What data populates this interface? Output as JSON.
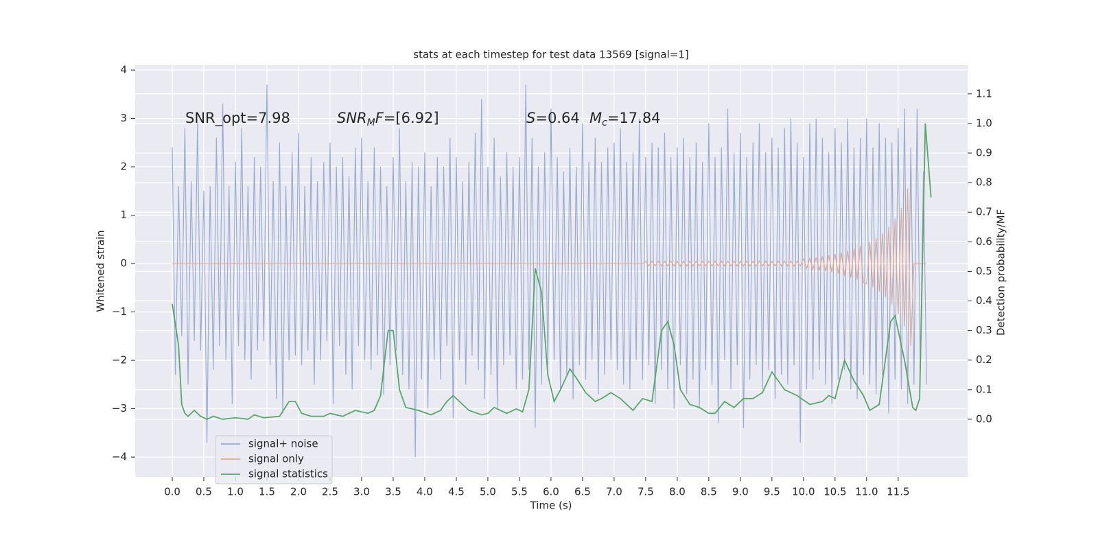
{
  "chart_data": {
    "type": "line",
    "title": "stats at each timestep for test data 13569 [signal=1]",
    "xlabel": "Time (s)",
    "ylabel": "Whitened strain",
    "y2label": "Detection probability/MF",
    "annotations": [
      {
        "parts": [
          {
            "text": "SNR_opt=7.98"
          }
        ]
      },
      {
        "parts": [
          {
            "text": "SNR",
            "italic": true
          },
          {
            "text": "M",
            "italic": true,
            "sub": true
          },
          {
            "text": "F",
            "italic": true
          },
          {
            "text": "=[6.92]"
          }
        ]
      },
      {
        "parts": [
          {
            "text": "S",
            "italic": true
          },
          {
            "text": "=0.64"
          }
        ]
      },
      {
        "parts": [
          {
            "text": "M",
            "italic": true
          },
          {
            "text": "c",
            "italic": true,
            "sub": true
          },
          {
            "text": "=17.84"
          }
        ]
      }
    ],
    "xlim": [
      -0.587,
      12.6
    ],
    "ylim": [
      -4.41,
      4.1
    ],
    "y2lim": [
      -0.195,
      1.197
    ],
    "xticks": [
      {
        "value": 0,
        "label": "0.0"
      },
      0.5,
      {
        "value": 1,
        "label": "1.0"
      },
      1.5,
      {
        "value": 2,
        "label": "2.0"
      },
      2.5,
      {
        "value": 3,
        "label": "3.0"
      },
      3.5,
      {
        "value": 4,
        "label": "4.0"
      },
      4.5,
      {
        "value": 5,
        "label": "5.0"
      },
      5.5,
      {
        "value": 6,
        "label": "6.0"
      },
      6.5,
      {
        "value": 7,
        "label": "7.0"
      },
      7.5,
      {
        "value": 8,
        "label": "8.0"
      },
      8.5,
      {
        "value": 9,
        "label": "9.0"
      },
      9.5,
      {
        "value": 10,
        "label": "10.0"
      },
      10.5,
      {
        "value": 11,
        "label": "11.0"
      },
      11.5
    ],
    "yticks": [
      {
        "value": -4,
        "label": "−4"
      },
      {
        "value": -3,
        "label": "−3"
      },
      {
        "value": -2,
        "label": "−2"
      },
      {
        "value": -1,
        "label": "−1"
      },
      0,
      1,
      2,
      3,
      4
    ],
    "y2ticks": [
      {
        "value": 0,
        "label": "0.0"
      },
      0.1,
      0.2,
      0.3,
      0.4,
      0.5,
      0.6,
      0.7,
      0.8,
      0.9,
      {
        "value": 1,
        "label": "1.0"
      },
      1.1
    ],
    "grid": true,
    "legend": "lower left",
    "x": [
      0,
      0.05,
      0.1,
      0.15,
      0.2,
      0.25,
      0.3,
      0.35,
      0.4,
      0.45,
      0.5,
      0.55,
      0.6,
      0.65,
      0.7,
      0.75,
      0.8,
      0.85,
      0.9,
      0.95,
      1,
      1.05,
      1.1,
      1.15,
      1.2,
      1.25,
      1.3,
      1.35,
      1.4,
      1.45,
      1.5,
      1.55,
      1.6,
      1.65,
      1.7,
      1.75,
      1.8,
      1.85,
      1.9,
      1.95,
      2,
      2.05,
      2.1,
      2.15,
      2.2,
      2.25,
      2.3,
      2.35,
      2.4,
      2.45,
      2.5,
      2.55,
      2.6,
      2.65,
      2.7,
      2.75,
      2.8,
      2.85,
      2.9,
      2.95,
      3,
      3.05,
      3.1,
      3.15,
      3.2,
      3.25,
      3.3,
      3.35,
      3.4,
      3.45,
      3.5,
      3.55,
      3.6,
      3.65,
      3.7,
      3.75,
      3.8,
      3.85,
      3.9,
      3.95,
      4,
      4.05,
      4.1,
      4.15,
      4.2,
      4.25,
      4.3,
      4.35,
      4.4,
      4.45,
      4.5,
      4.55,
      4.6,
      4.65,
      4.7,
      4.75,
      4.8,
      4.85,
      4.9,
      4.95,
      5,
      5.05,
      5.1,
      5.15,
      5.2,
      5.25,
      5.3,
      5.35,
      5.4,
      5.45,
      5.5,
      5.55,
      5.6,
      5.65,
      5.7,
      5.75,
      5.8,
      5.85,
      5.9,
      5.95,
      6,
      6.05,
      6.1,
      6.15,
      6.2,
      6.25,
      6.3,
      6.35,
      6.4,
      6.45,
      6.5,
      6.55,
      6.6,
      6.65,
      6.7,
      6.75,
      6.8,
      6.85,
      6.9,
      6.95,
      7,
      7.05,
      7.1,
      7.15,
      7.2,
      7.25,
      7.3,
      7.35,
      7.4,
      7.45,
      7.5,
      7.55,
      7.6,
      7.65,
      7.7,
      7.75,
      7.8,
      7.85,
      7.9,
      7.95,
      8,
      8.05,
      8.1,
      8.15,
      8.2,
      8.25,
      8.3,
      8.35,
      8.4,
      8.45,
      8.5,
      8.55,
      8.6,
      8.65,
      8.7,
      8.75,
      8.8,
      8.85,
      8.9,
      8.95,
      9,
      9.05,
      9.1,
      9.15,
      9.2,
      9.25,
      9.3,
      9.35,
      9.4,
      9.45,
      9.5,
      9.55,
      9.6,
      9.65,
      9.7,
      9.75,
      9.8,
      9.85,
      9.9,
      9.95,
      10,
      10.05,
      10.1,
      10.15,
      10.2,
      10.25,
      10.3,
      10.35,
      10.4,
      10.45,
      10.5,
      10.55,
      10.6,
      10.65,
      10.7,
      10.75,
      10.8,
      10.85,
      10.9,
      10.95,
      11,
      11.05,
      11.1,
      11.15,
      11.2,
      11.25,
      11.3,
      11.35,
      11.4,
      11.45,
      11.5,
      11.55,
      11.6,
      11.65,
      11.7,
      11.75,
      11.8,
      11.85,
      11.9,
      11.95
    ],
    "series": [
      {
        "name": "signal+ noise",
        "color": "#9aacd2",
        "values": [
          2.4,
          -2.3,
          1.6,
          -1.5,
          2.8,
          -2.5,
          1.7,
          -1.6,
          2.9,
          -1.8,
          1.5,
          -3.7,
          1.6,
          -2.2,
          2.6,
          -1.7,
          3.3,
          -2.0,
          1.6,
          -2.9,
          2.1,
          -1.7,
          2.8,
          -2.0,
          1.6,
          -2.4,
          2.2,
          -1.8,
          2.0,
          -1.6,
          3.7,
          -2.1,
          1.7,
          -2.8,
          2.5,
          -3.1,
          1.6,
          -2.0,
          2.3,
          -1.9,
          2.7,
          -2.1,
          1.6,
          -1.8,
          2.2,
          -2.5,
          1.7,
          -2.0,
          2.1,
          -1.6,
          2.5,
          -2.9,
          2.0,
          -1.7,
          2.2,
          -2.3,
          1.8,
          -2.6,
          2.4,
          -1.7,
          2.6,
          -2.0,
          1.7,
          -2.2,
          2.4,
          -1.9,
          2.0,
          -2.7,
          1.6,
          -2.1,
          2.2,
          -1.8,
          2.8,
          -2.3,
          1.7,
          -2.6,
          2.1,
          -4.0,
          2.0,
          -2.4,
          2.3,
          -3.0,
          1.6,
          -2.0,
          2.2,
          -2.4,
          2.0,
          -1.7,
          2.6,
          -3.2,
          2.2,
          -2.0,
          1.7,
          -2.5,
          2.1,
          -1.9,
          2.7,
          -2.2,
          3.4,
          -2.8,
          2.0,
          -2.3,
          2.6,
          -3.0,
          1.8,
          -2.1,
          2.3,
          -1.9,
          2.0,
          -2.6,
          2.2,
          -2.4,
          3.7,
          -2.2,
          2.6,
          -3.4,
          2.0,
          -2.5,
          2.3,
          -2.1,
          3.2,
          -2.0,
          2.2,
          -2.6,
          1.9,
          -2.3,
          2.4,
          -2.8,
          2.0,
          -2.1,
          2.9,
          -2.4,
          2.1,
          -2.0,
          2.6,
          -2.7,
          2.1,
          -2.3,
          2.4,
          -2.0,
          2.5,
          -2.2,
          2.8,
          -2.5,
          2.1,
          -2.6,
          2.3,
          -2.0,
          3.0,
          -2.4,
          2.2,
          -2.1,
          2.5,
          -2.9,
          2.4,
          -2.2,
          2.7,
          -2.6,
          2.2,
          -3.0,
          2.4,
          -2.1,
          2.6,
          -2.7,
          2.2,
          -2.4,
          2.5,
          -3.0,
          2.1,
          -2.2,
          2.9,
          -2.5,
          2.2,
          -3.3,
          2.4,
          -2.0,
          3.2,
          -2.6,
          2.3,
          -2.1,
          2.7,
          -3.4,
          2.2,
          -2.4,
          2.5,
          -2.1,
          2.9,
          -2.6,
          2.3,
          -2.2,
          2.6,
          -2.8,
          2.4,
          -2.3,
          2.8,
          -2.5,
          3.0,
          -2.1,
          2.5,
          -3.7,
          2.2,
          -2.6,
          2.9,
          -2.4,
          3.0,
          -2.2,
          2.6,
          -2.5,
          2.3,
          -2.9,
          2.8,
          -2.4,
          2.5,
          -2.2,
          3.0,
          -2.6,
          2.4,
          -2.8,
          2.6,
          -2.3,
          3.0,
          -2.5,
          2.4,
          -2.7,
          2.9,
          -2.3,
          2.6,
          -3.1,
          2.5,
          -2.4,
          2.8,
          -2.6,
          3.2,
          -2.9,
          2.4,
          -2.5,
          3.2,
          -2.3,
          1.9,
          -2.5
        ]
      },
      {
        "name": "signal only",
        "color": "#e8a98a",
        "values": [
          0,
          0,
          0,
          0,
          0,
          0,
          0,
          0,
          0,
          0,
          0,
          0,
          0,
          0,
          0,
          0,
          0,
          0,
          0,
          0,
          0,
          0,
          0,
          0,
          0,
          0,
          0,
          0,
          0,
          0,
          0,
          0,
          0,
          0,
          0,
          0,
          0,
          0,
          0,
          0,
          0,
          0,
          0,
          0,
          0,
          0,
          0,
          0,
          0,
          0,
          0,
          0,
          0,
          0,
          0,
          0,
          0,
          0,
          0,
          0,
          0,
          0,
          0,
          0,
          0,
          0,
          0,
          0,
          0,
          0,
          0,
          0,
          0,
          0,
          0,
          0,
          0,
          0,
          0,
          0,
          0,
          0,
          0,
          0,
          0,
          0,
          0,
          0,
          0,
          0,
          0,
          0,
          0,
          0,
          0,
          0,
          0,
          0,
          0,
          0,
          0,
          0,
          0,
          0,
          0,
          0,
          0,
          0,
          0,
          0,
          0,
          0,
          0,
          0,
          0,
          0,
          0,
          0,
          0,
          0,
          0,
          0,
          0,
          0,
          0,
          0,
          0,
          0,
          0,
          0,
          0,
          0,
          0,
          0,
          0,
          0,
          0,
          0,
          0,
          0,
          0,
          0,
          0,
          0,
          0,
          0,
          0,
          0,
          0,
          0,
          0.05,
          -0.05,
          0.05,
          -0.05,
          0.05,
          -0.05,
          0.05,
          -0.05,
          0.05,
          -0.05,
          0.05,
          -0.05,
          0.05,
          -0.05,
          0.05,
          -0.05,
          0.05,
          -0.05,
          0.05,
          -0.05,
          0.05,
          -0.05,
          0.05,
          -0.05,
          0.05,
          -0.05,
          0.05,
          -0.05,
          0.05,
          -0.05,
          0.05,
          -0.05,
          0.05,
          -0.05,
          0.05,
          -0.05,
          0.05,
          -0.05,
          0.05,
          -0.05,
          0.05,
          -0.05,
          0.05,
          -0.05,
          0.05,
          -0.05,
          0.05,
          -0.05,
          0.05,
          -0.05,
          0.1,
          -0.1,
          0.11,
          -0.12,
          0.13,
          -0.14,
          0.15,
          -0.16,
          0.17,
          -0.18,
          0.2,
          -0.21,
          0.23,
          -0.25,
          0.27,
          -0.29,
          0.31,
          -0.33,
          0.36,
          -0.39,
          -0.42,
          0.45,
          -0.49,
          0.53,
          -0.58,
          0.63,
          -0.69,
          0.76,
          -0.84,
          0.93,
          -1.05,
          1.15,
          -1.3,
          1.55,
          -1.7,
          0,
          0,
          0,
          0,
          0
        ]
      },
      {
        "name": "signal statistics",
        "color": "#55a868",
        "axis": "y2",
        "x": [
          0,
          0.1,
          0.15,
          0.2,
          0.25,
          0.35,
          0.45,
          0.55,
          0.65,
          0.8,
          1.0,
          1.2,
          1.3,
          1.45,
          1.7,
          1.85,
          1.95,
          2.05,
          2.2,
          2.4,
          2.5,
          2.7,
          2.9,
          3.1,
          3.2,
          3.3,
          3.42,
          3.5,
          3.6,
          3.7,
          3.9,
          4.1,
          4.25,
          4.35,
          4.45,
          4.6,
          4.7,
          4.9,
          5.0,
          5.1,
          5.2,
          5.3,
          5.45,
          5.55,
          5.65,
          5.75,
          5.85,
          5.95,
          6.05,
          6.15,
          6.3,
          6.4,
          6.55,
          6.7,
          6.8,
          6.95,
          7.1,
          7.3,
          7.45,
          7.6,
          7.75,
          7.85,
          7.95,
          8.05,
          8.2,
          8.35,
          8.5,
          8.6,
          8.75,
          8.9,
          9.05,
          9.2,
          9.35,
          9.5,
          9.7,
          9.9,
          10.1,
          10.3,
          10.4,
          10.5,
          10.65,
          10.8,
          10.95,
          11.05,
          11.2,
          11.38,
          11.45,
          11.6,
          11.73,
          11.78,
          11.84,
          11.93,
          12.02
        ],
        "values": [
          0.39,
          0.25,
          0.05,
          0.02,
          0.01,
          0.03,
          0.01,
          0.0,
          0.01,
          0.0,
          0.005,
          0.0,
          0.015,
          0.005,
          0.01,
          0.06,
          0.06,
          0.02,
          0.01,
          0.01,
          0.02,
          0.01,
          0.03,
          0.02,
          0.03,
          0.08,
          0.3,
          0.3,
          0.1,
          0.04,
          0.03,
          0.015,
          0.03,
          0.06,
          0.08,
          0.05,
          0.03,
          0.015,
          0.02,
          0.04,
          0.03,
          0.02,
          0.035,
          0.025,
          0.1,
          0.51,
          0.43,
          0.15,
          0.06,
          0.1,
          0.17,
          0.14,
          0.09,
          0.06,
          0.07,
          0.09,
          0.07,
          0.03,
          0.07,
          0.06,
          0.3,
          0.33,
          0.25,
          0.1,
          0.05,
          0.04,
          0.02,
          0.02,
          0.06,
          0.04,
          0.07,
          0.07,
          0.09,
          0.16,
          0.1,
          0.08,
          0.05,
          0.06,
          0.08,
          0.07,
          0.2,
          0.13,
          0.08,
          0.03,
          0.05,
          0.33,
          0.35,
          0.2,
          0.04,
          0.03,
          0.07,
          1.0,
          0.75
        ]
      }
    ]
  }
}
